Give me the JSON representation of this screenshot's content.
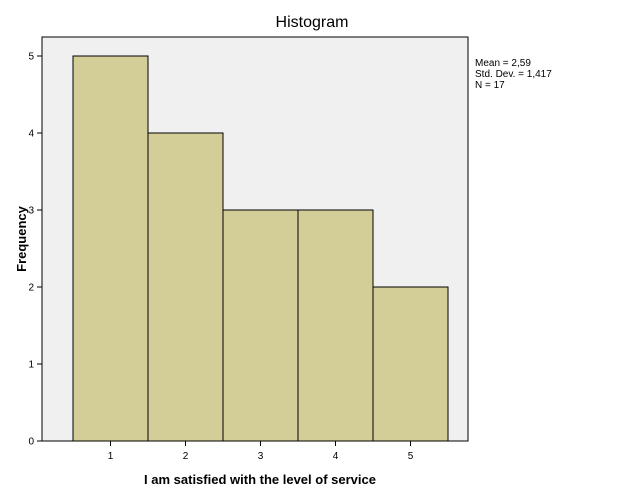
{
  "chart_data": {
    "type": "bar",
    "title": "Histogram",
    "xlabel": "I am satisfied with the level of service",
    "ylabel": "Frequency",
    "categories": [
      "1",
      "2",
      "3",
      "4",
      "5"
    ],
    "values": [
      5,
      4,
      3,
      3,
      2
    ],
    "ylim": [
      0,
      5
    ],
    "yticks": [
      "0",
      "1",
      "2",
      "3",
      "4",
      "5"
    ],
    "grid": false,
    "stats": {
      "mean": "Mean = 2,59",
      "std_dev": "Std. Dev. = 1,417",
      "n": "N = 17"
    },
    "colors": {
      "bar_fill": "#d3ce98",
      "bar_stroke": "#000000",
      "plot_background": "#f0f0f0",
      "axis": "#000000"
    }
  }
}
